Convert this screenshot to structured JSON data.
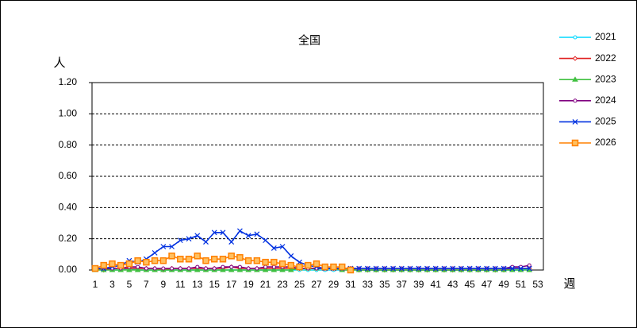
{
  "chart_data": {
    "type": "line",
    "title": "全国",
    "y_label": "人",
    "x_label": "週",
    "categories": [
      1,
      null,
      3,
      null,
      5,
      null,
      7,
      null,
      9,
      null,
      11,
      null,
      13,
      null,
      15,
      null,
      17,
      null,
      19,
      null,
      21,
      null,
      23,
      null,
      25,
      null,
      27,
      null,
      29,
      null,
      31,
      null,
      33,
      null,
      35,
      null,
      37,
      null,
      39,
      null,
      41,
      null,
      43,
      null,
      45,
      null,
      47,
      null,
      49,
      null,
      51,
      null,
      53
    ],
    "ylim": [
      0,
      1.2
    ],
    "yticks": [
      {
        "value": 0,
        "label": "0.00"
      },
      {
        "value": 0.2,
        "label": "0.20"
      },
      {
        "value": 0.4,
        "label": "0.40"
      },
      {
        "value": 0.6,
        "label": "0.60"
      },
      {
        "value": 0.8,
        "label": "0.80"
      },
      {
        "value": 1.0,
        "label": "1.00"
      },
      {
        "value": 1.2,
        "label": "1.20"
      }
    ],
    "grid": true,
    "legend": "right",
    "series": [
      {
        "name": "2021",
        "color": "#00d8ff",
        "marker": "circle",
        "values": [
          0.01,
          0.01,
          0,
          0,
          0.01,
          0,
          0,
          0,
          0,
          0,
          0,
          0,
          0,
          0,
          0,
          0,
          0,
          0,
          0,
          0,
          0,
          0,
          0,
          0,
          0,
          0,
          0,
          0,
          0,
          0,
          0,
          0,
          0,
          0,
          0,
          0,
          0,
          0,
          0,
          0,
          0,
          0,
          0,
          0,
          0,
          0,
          0,
          0,
          0,
          0,
          0,
          0.01,
          null
        ]
      },
      {
        "name": "2022",
        "color": "#e02020",
        "marker": "diamond",
        "values": [
          0.01,
          0,
          0.01,
          0.01,
          0.01,
          0.01,
          0.01,
          0.01,
          0,
          0.01,
          0.01,
          0.01,
          0.01,
          0.01,
          0.01,
          0.01,
          0.02,
          0.01,
          0.01,
          0.01,
          0.01,
          0.01,
          0.01,
          0.01,
          0.01,
          0.01,
          0.01,
          0.01,
          0.01,
          0.01,
          0.01,
          0,
          0,
          0,
          0,
          0,
          0,
          0,
          0,
          0,
          0,
          0,
          0,
          0,
          0,
          0,
          0,
          0,
          0,
          0.01,
          0.01,
          0.01,
          null
        ]
      },
      {
        "name": "2023",
        "color": "#40c040",
        "marker": "triangle",
        "values": [
          0,
          0,
          0,
          0,
          0,
          0,
          0,
          0,
          0,
          0,
          0,
          0,
          0,
          0,
          0,
          0,
          0,
          0,
          0,
          0,
          0,
          0,
          0,
          0,
          0.01,
          0.01,
          0.01,
          0.01,
          0.01,
          0,
          0,
          0,
          0,
          0,
          0,
          0,
          0,
          0,
          0,
          0,
          0,
          0,
          0,
          0,
          0,
          0,
          0,
          0,
          0,
          0,
          0,
          0,
          null
        ]
      },
      {
        "name": "2024",
        "color": "#800080",
        "marker": "circle",
        "values": [
          0.01,
          0.01,
          0.01,
          0.01,
          0.02,
          0.02,
          0.01,
          0.01,
          0.01,
          0.01,
          0.01,
          0.01,
          0.02,
          0.01,
          0.01,
          0.02,
          0.02,
          0.02,
          0.01,
          0.01,
          0.02,
          0.02,
          0.02,
          0.02,
          0.01,
          0.01,
          0.01,
          0.01,
          0.01,
          0.01,
          0.01,
          0.01,
          0.01,
          0.01,
          0.01,
          0.01,
          0.01,
          0.01,
          0.01,
          0.01,
          0.01,
          0.01,
          0.01,
          0.01,
          0.01,
          0.01,
          0.01,
          0.01,
          0.01,
          0.02,
          0.02,
          0.03,
          null
        ]
      },
      {
        "name": "2025",
        "color": "#0030e0",
        "marker": "x",
        "values": [
          0.01,
          0.01,
          0.02,
          0.03,
          0.06,
          0.05,
          0.07,
          0.11,
          0.15,
          0.15,
          0.19,
          0.2,
          0.22,
          0.18,
          0.24,
          0.24,
          0.18,
          0.25,
          0.22,
          0.23,
          0.19,
          0.14,
          0.15,
          0.09,
          0.05,
          0.03,
          0.02,
          0.01,
          0.01,
          0.01,
          0.01,
          0.01,
          0.01,
          0.01,
          0.01,
          0.01,
          0.01,
          0.01,
          0.01,
          0.01,
          0.01,
          0.01,
          0.01,
          0.01,
          0.01,
          0.01,
          0.01,
          0.01,
          0.01,
          0.01,
          0.01,
          0.01,
          null
        ]
      },
      {
        "name": "2026",
        "color": "#ff8000",
        "marker": "square",
        "values": [
          0.01,
          0.03,
          0.04,
          0.03,
          0.04,
          0.06,
          0.05,
          0.06,
          0.06,
          0.09,
          0.07,
          0.07,
          0.09,
          0.06,
          0.07,
          0.07,
          0.09,
          0.08,
          0.06,
          0.06,
          0.05,
          0.05,
          0.04,
          0.03,
          0.02,
          0.03,
          0.04,
          0.02,
          0.02,
          0.02,
          0,
          null,
          null,
          null,
          null,
          null,
          null,
          null,
          null,
          null,
          null,
          null,
          null,
          null,
          null,
          null,
          null,
          null,
          null,
          null,
          null,
          null,
          null
        ]
      }
    ]
  }
}
